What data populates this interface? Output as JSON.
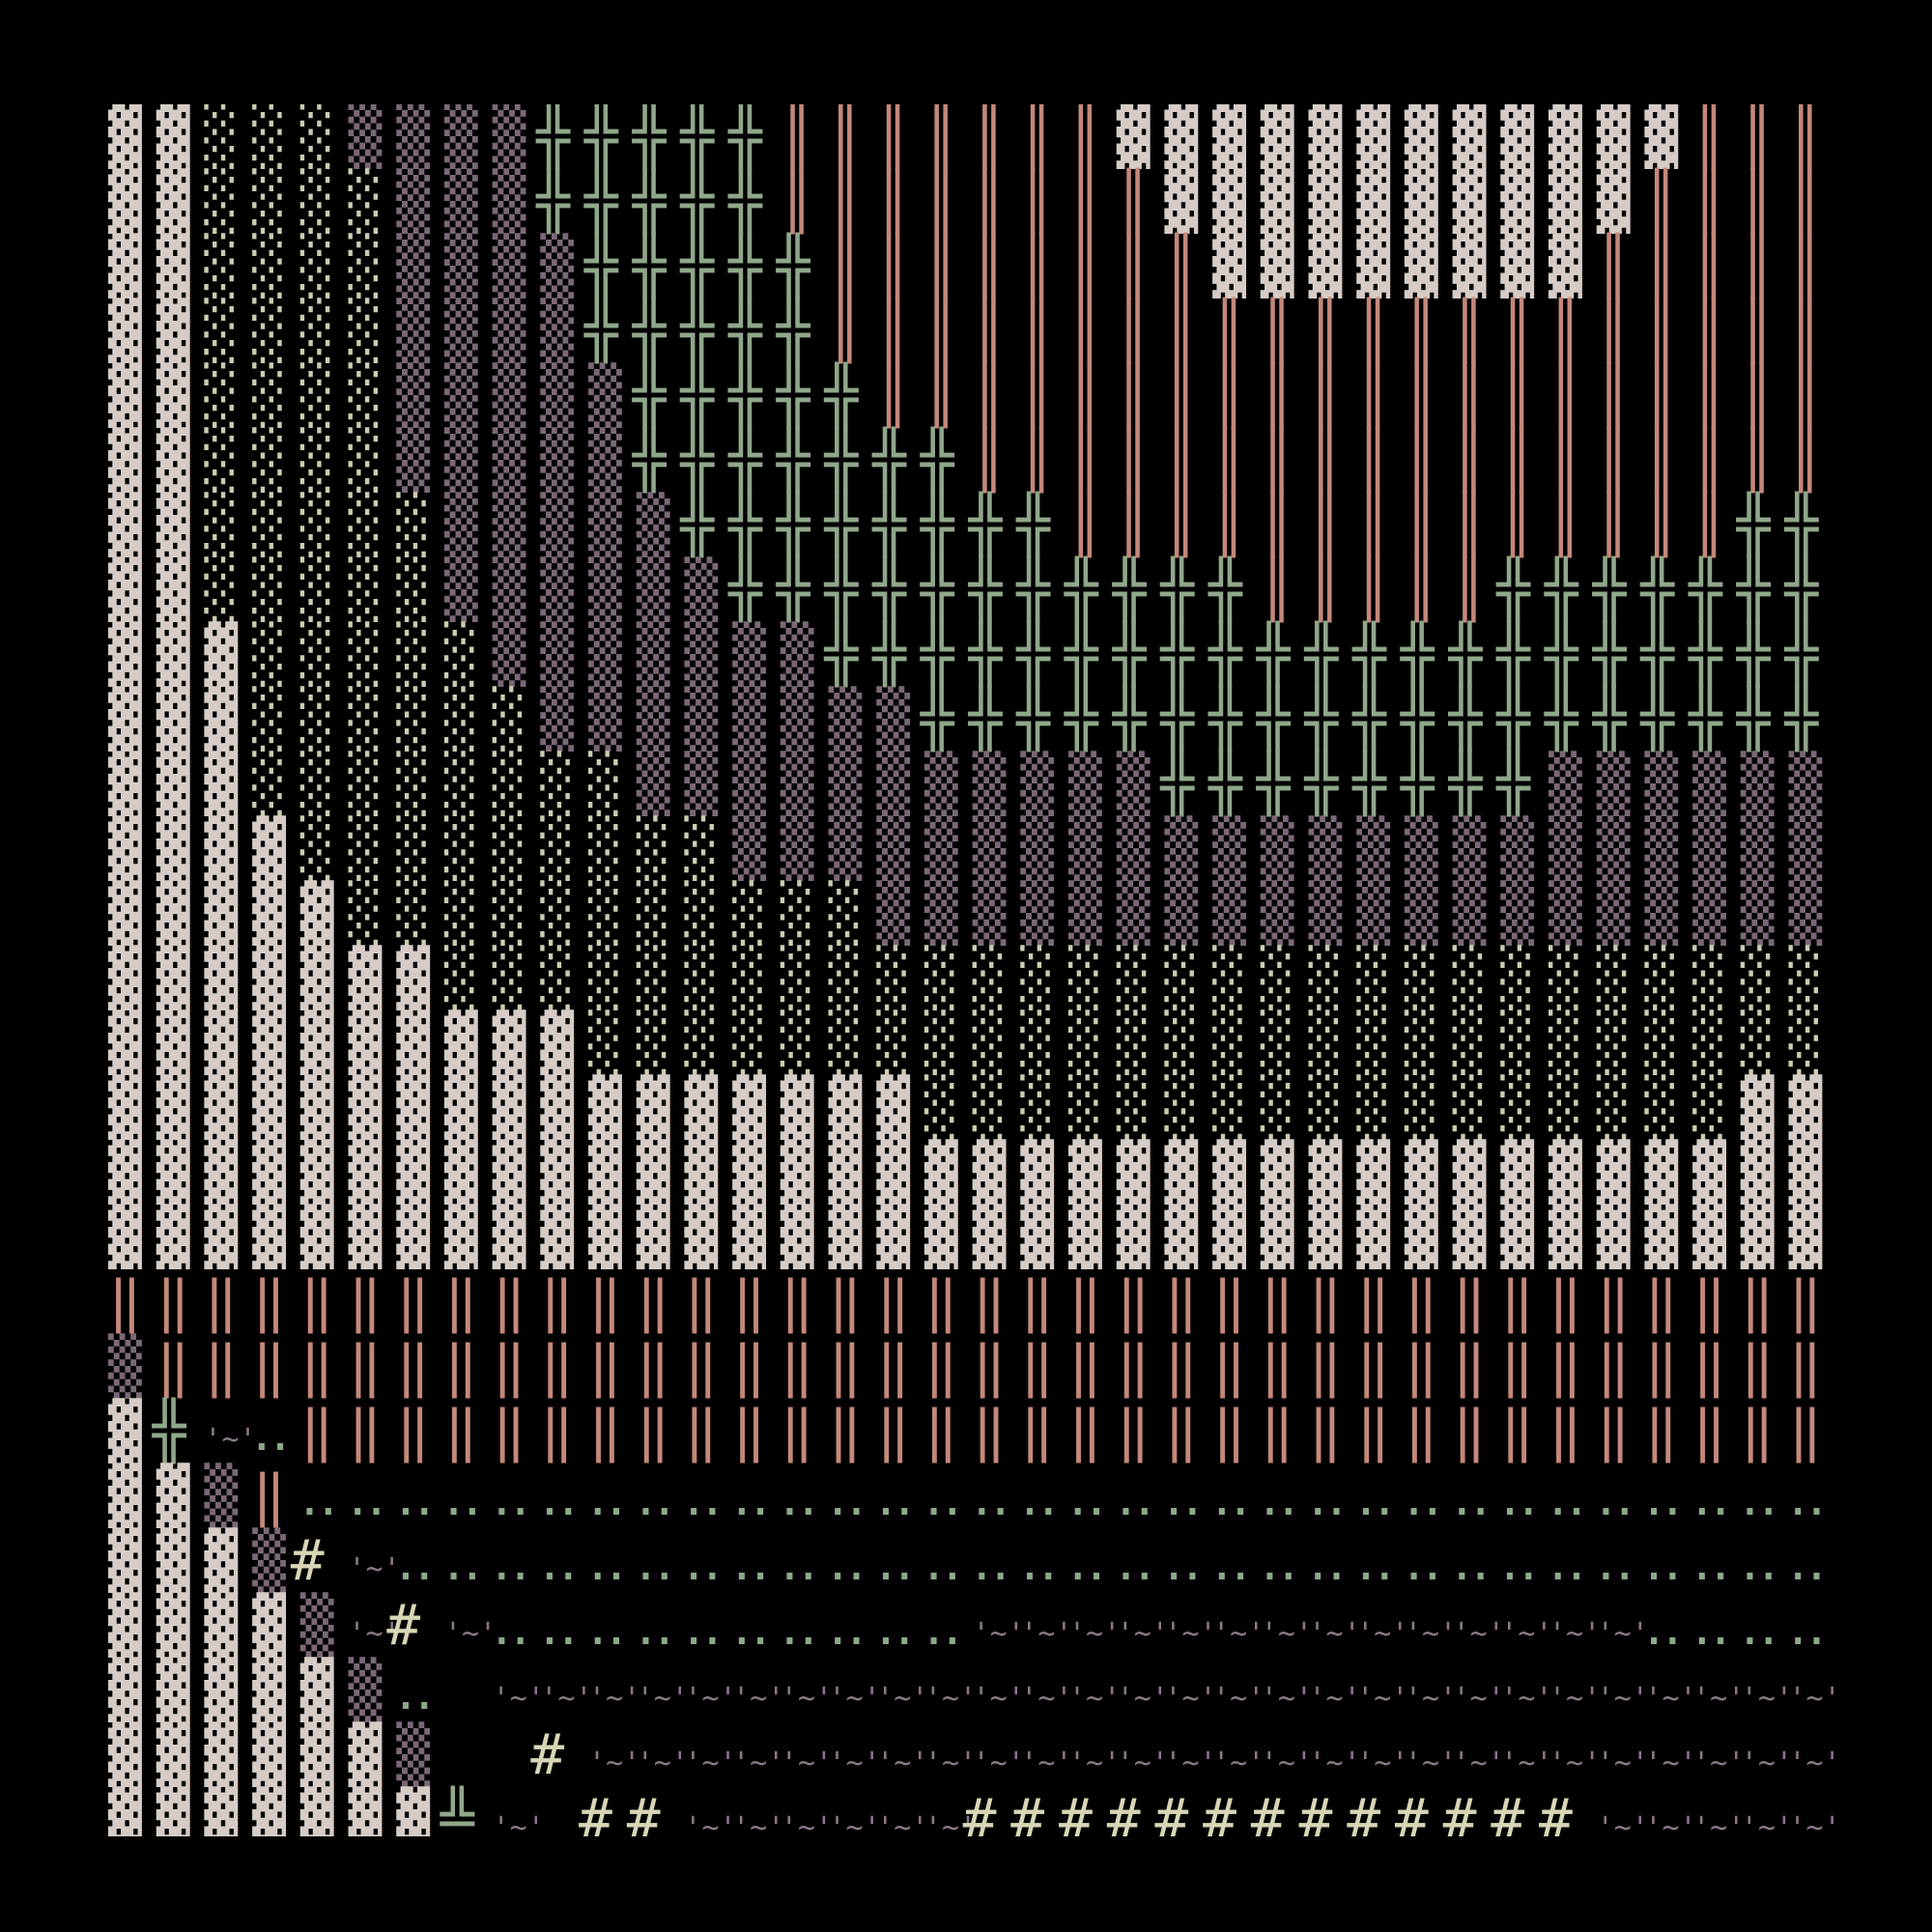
{
  "grid": {
    "columns": 36,
    "rows": [
      "▓▓░░░▒▒▒▒╬╬╬╬╬║║║║║║║▓▓▓▓▓▓▓▓▓▓▓▓║║║",
      "▓▓░░░░▒▒▒╬╬╬╬╬║║║║║║║║▓▓▓▓▓▓▓▓▓▓║║║║",
      "▓▓░░░░▒▒▒▒╬╬╬╬╬║║║║║║║║▓▓▓▓▓▓▓▓║║║║║",
      "▓▓░░░░▒▒▒▒╬╬╬╬╬║║║║║║║║║║║║║║║║║║║║║",
      "▓▓░░░░▒▒▒▒▒╬╬╬╬╬║║║║║║║║║║║║║║║║║║║║",
      "▓▓░░░░▒▒▒▒▒╬╬╬╬╬╬╬║║║║║║║║║║║║║║║║║║",
      "▓▓░░░░░▒▒▒▒▒╬╬╬╬╬╬╬╬║║║║║║║║║║║║║║╬╬",
      "▓▓░░░░░▒▒▒▒▒▒╬╬╬╬╬╬╬╬╬╬╬║║║║║╬╬╬╬╬╬╬",
      "▓▓▓░░░░░▒▒▒▒▒▒▒╬╬╬╬╬╬╬╬╬╬╬╬╬╬╬╬╬╬╬╬╬",
      "▓▓▓░░░░░░▒▒▒▒▒▒▒▒╬╬╬╬╬╬╬╬╬╬╬╬╬╬╬╬╬╬╬",
      "▓▓▓░░░░░░░░▒▒▒▒▒▒▒▒▒▒▒╬╬╬╬╬╬╬╬▒▒▒▒▒▒",
      "▓▓▓▓░░░░░░░░░▒▒▒▒▒▒▒▒▒▒▒▒▒▒▒▒▒▒▒▒▒▒▒",
      "▓▓▓▓▓░░░░░░░░░░░▒▒▒▒▒▒▒▒▒▒▒▒▒▒▒▒▒▒▒▒",
      "▓▓▓▓▓▓▓░░░░░░░░░░░░░░░░░░░░░░░░░░░░░",
      "▓▓▓▓▓▓▓▓▓▓░░░░░░░░░░░░░░░░░░░░░░░░░░",
      "▓▓▓▓▓▓▓▓▓▓▓▓▓▓▓▓▓░░░░░░░░░░░░░░░░░▓▓",
      "▓▓▓▓▓▓▓▓▓▓▓▓▓▓▓▓▓▓▓▓▓▓▓▓▓▓▓▓▓▓▓▓▓▓▓▓",
      "▓▓▓▓▓▓▓▓▓▓▓▓▓▓▓▓▓▓▓▓▓▓▓▓▓▓▓▓▓▓▓▓▓▓▓▓",
      "‖‖‖‖‖‖‖‖‖‖‖‖‖‖‖‖‖‖‖‖‖‖‖‖‖‖‖‖‖‖‖‖‖‖‖‖",
      "▒‖‖‖‖‖‖‖‖‖‖‖‖‖‖‖‖‖‖‖‖‖‖‖‖‖‖‖‖‖‖‖‖‖‖‖",
      "▓╬~‥‖‖‖‖‖‖‖‖‖‖‖‖‖‖‖‖‖‖‖‖‖‖‖‖‖‖‖‖‖‖‖‖",
      "▓▓▒‖‥‥‥‥‥‥‥‥‥‥‥‥‥‥‥‥‥‥‥‥‥‥‥‥‥‥‥‥‥‥‥‥",
      "▓▓▓▒#~‥‥‥‥‥‥‥‥‥‥‥‥‥‥‥‥‥‥‥‥‥‥‥‥‥‥‥‥‥‥",
      "▓▓▓▓▒~#~‥‥‥‥‥‥‥‥‥‥~~~~~~~~~~~~~~‥‥‥‥",
      "▓▓▓▓▓▒‥ ~~~~~~~~~~~~~~~~~~~~~~~~~~~~",
      "▓▓▓▓▓▓▒  #~~~~~~~~~~~~~~~~~~~~~~~~~~",
      "▓▓▓▓▓▓▓╩~ ##~~~~~~#############~~~~~"
    ]
  },
  "glyph_display": {
    "~": "'~'"
  },
  "glyph_names": {
    "▓": "dark-shade-cell",
    "░": "light-shade-cell",
    "▒": "medium-shade-cell",
    "╬": "double-cross-cell",
    "║": "double-vertical-cell",
    "‖": "double-bar-cell",
    "‥": "two-dot-cell",
    "~": "tilde-cell",
    "#": "hash-cell",
    "╩": "double-up-horizontal-cell"
  },
  "colors": {
    "background": "#000000",
    "▓": "#d5cdc5",
    "░": "#c9cdb0",
    "▒": "#7a6878",
    "╬": "#8fa78a",
    "║": "#c4887a",
    "‖": "#c4887a",
    "‥": "#8fa78a",
    "~": "#8a7888",
    "#": "#d8d6b6",
    "╩": "#8fa78a"
  }
}
